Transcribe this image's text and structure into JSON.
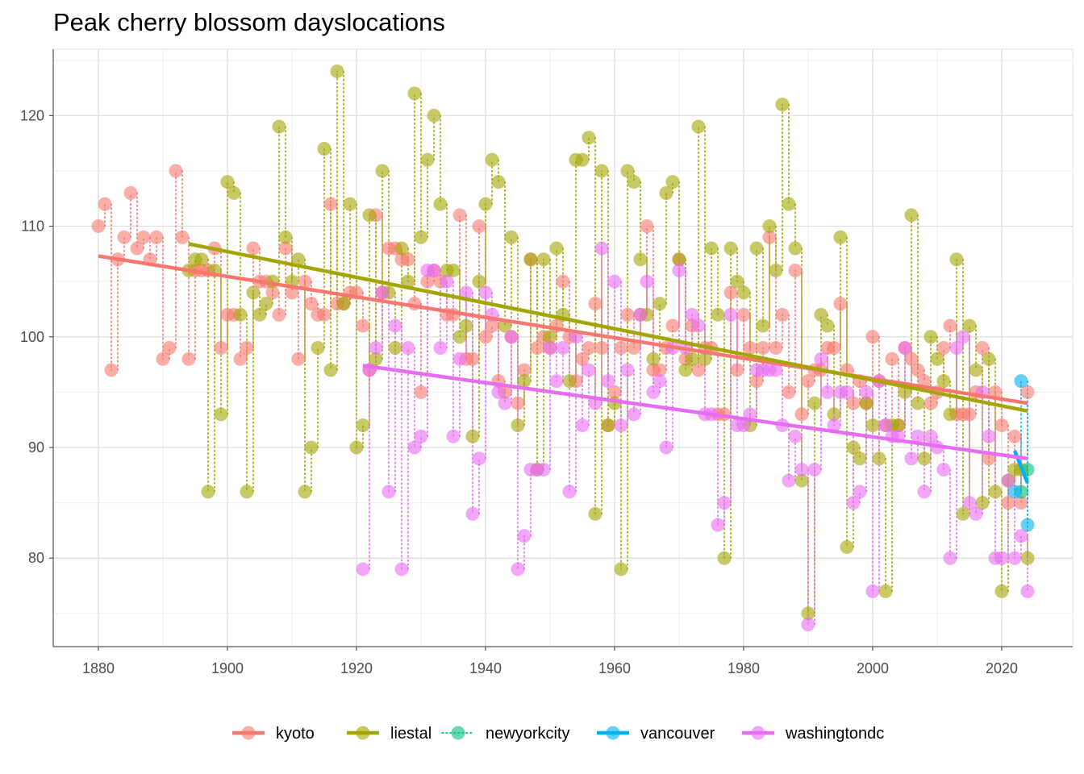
{
  "chart_data": {
    "type": "scatter",
    "title": "Peak cherry blossom dayslocations",
    "xlabel": "",
    "ylabel": "",
    "xlim": [
      1873,
      2031
    ],
    "ylim": [
      72,
      126
    ],
    "x_ticks": [
      1880,
      1900,
      1920,
      1940,
      1960,
      1980,
      2000,
      2020
    ],
    "y_ticks": [
      80,
      90,
      100,
      110,
      120
    ],
    "grid": true,
    "legend_position": "bottom",
    "colors": {
      "kyoto": "#F8766D",
      "liestal": "#A3A500",
      "newyorkcity": "#00BF7D",
      "vancouver": "#00B0F6",
      "washingtondc": "#E76BF3"
    },
    "legend": [
      "kyoto",
      "liestal",
      "newyorkcity",
      "vancouver",
      "washingtondc"
    ],
    "series": [
      {
        "name": "kyoto",
        "x": [
          1880,
          1881,
          1882,
          1883,
          1884,
          1885,
          1886,
          1887,
          1888,
          1889,
          1890,
          1891,
          1892,
          1893,
          1894,
          1895,
          1896,
          1897,
          1898,
          1899,
          1900,
          1901,
          1902,
          1903,
          1904,
          1905,
          1906,
          1907,
          1908,
          1909,
          1910,
          1911,
          1912,
          1913,
          1914,
          1915,
          1916,
          1917,
          1918,
          1919,
          1920,
          1921,
          1922,
          1923,
          1924,
          1925,
          1926,
          1927,
          1928,
          1929,
          1930,
          1931,
          1932,
          1933,
          1934,
          1935,
          1936,
          1937,
          1938,
          1939,
          1940,
          1941,
          1942,
          1943,
          1944,
          1945,
          1946,
          1947,
          1948,
          1949,
          1950,
          1951,
          1952,
          1953,
          1954,
          1955,
          1956,
          1957,
          1958,
          1959,
          1960,
          1961,
          1962,
          1963,
          1964,
          1965,
          1966,
          1967,
          1968,
          1969,
          1970,
          1971,
          1972,
          1973,
          1974,
          1975,
          1976,
          1977,
          1978,
          1979,
          1980,
          1981,
          1982,
          1983,
          1984,
          1985,
          1986,
          1987,
          1988,
          1989,
          1990,
          1991,
          1992,
          1993,
          1994,
          1995,
          1996,
          1997,
          1998,
          1999,
          2000,
          2001,
          2002,
          2003,
          2004,
          2005,
          2006,
          2007,
          2008,
          2009,
          2010,
          2011,
          2012,
          2013,
          2014,
          2015,
          2016,
          2017,
          2018,
          2019,
          2020,
          2021,
          2022,
          2023,
          2024
        ],
        "y": [
          110,
          112,
          97,
          107,
          109,
          113,
          108,
          109,
          107,
          109,
          98,
          99,
          115,
          109,
          98,
          106,
          106,
          106,
          108,
          99,
          102,
          102,
          98,
          99,
          108,
          105,
          105,
          104,
          102,
          108,
          104,
          98,
          105,
          103,
          102,
          102,
          112,
          103,
          103,
          104,
          104,
          101,
          97,
          111,
          104,
          108,
          108,
          107,
          107,
          103,
          95,
          105,
          106,
          105,
          102,
          102,
          111,
          98,
          98,
          110,
          100,
          101,
          96,
          95,
          100,
          94,
          97,
          107,
          99,
          100,
          99,
          101,
          105,
          100,
          96,
          98,
          99,
          103,
          99,
          92,
          95,
          99,
          102,
          99,
          102,
          110,
          97,
          97,
          99,
          101,
          107,
          98,
          101,
          97,
          99,
          99,
          93,
          93,
          104,
          97,
          102,
          99,
          96,
          99,
          109,
          99,
          102,
          95,
          106,
          93,
          96,
          97,
          97,
          99,
          99,
          103,
          97,
          94,
          96,
          94,
          100,
          96,
          92,
          98,
          92,
          99,
          98,
          97,
          96,
          94,
          95,
          99,
          101,
          93,
          93,
          93,
          95,
          99,
          89,
          95,
          92,
          85,
          91,
          85,
          95
        ]
      },
      {
        "name": "liestal",
        "x": [
          1894,
          1895,
          1896,
          1897,
          1898,
          1899,
          1900,
          1901,
          1902,
          1903,
          1904,
          1905,
          1906,
          1907,
          1908,
          1909,
          1910,
          1911,
          1912,
          1913,
          1914,
          1915,
          1916,
          1917,
          1918,
          1919,
          1920,
          1921,
          1922,
          1923,
          1924,
          1925,
          1926,
          1927,
          1928,
          1929,
          1930,
          1931,
          1932,
          1933,
          1934,
          1935,
          1936,
          1937,
          1938,
          1939,
          1940,
          1941,
          1942,
          1943,
          1944,
          1945,
          1946,
          1947,
          1948,
          1949,
          1950,
          1951,
          1952,
          1953,
          1954,
          1955,
          1956,
          1957,
          1958,
          1959,
          1960,
          1961,
          1962,
          1963,
          1964,
          1965,
          1966,
          1967,
          1968,
          1969,
          1970,
          1971,
          1972,
          1973,
          1974,
          1975,
          1976,
          1977,
          1978,
          1979,
          1980,
          1981,
          1982,
          1983,
          1984,
          1985,
          1986,
          1987,
          1988,
          1989,
          1990,
          1991,
          1992,
          1993,
          1994,
          1995,
          1996,
          1997,
          1998,
          1999,
          2000,
          2001,
          2002,
          2003,
          2004,
          2005,
          2006,
          2007,
          2008,
          2009,
          2010,
          2011,
          2012,
          2013,
          2014,
          2015,
          2016,
          2017,
          2018,
          2019,
          2020,
          2021,
          2022,
          2023,
          2024
        ],
        "y": [
          106,
          107,
          107,
          86,
          106,
          93,
          114,
          113,
          102,
          86,
          104,
          102,
          103,
          105,
          119,
          109,
          105,
          107,
          86,
          90,
          99,
          117,
          97,
          124,
          103,
          112,
          90,
          92,
          111,
          98,
          115,
          104,
          99,
          108,
          105,
          122,
          109,
          116,
          120,
          112,
          106,
          106,
          100,
          101,
          91,
          105,
          112,
          116,
          114,
          101,
          109,
          92,
          96,
          107,
          88,
          107,
          100,
          108,
          102,
          96,
          116,
          116,
          118,
          84,
          115,
          92,
          94,
          79,
          115,
          114,
          107,
          102,
          98,
          103,
          113,
          114,
          107,
          97,
          98,
          119,
          98,
          108,
          102,
          80,
          108,
          105,
          104,
          92,
          108,
          101,
          110,
          106,
          121,
          112,
          108,
          87,
          75,
          94,
          102,
          101,
          93,
          109,
          81,
          90,
          89,
          94,
          92,
          89,
          77,
          92,
          92,
          95,
          111,
          94,
          89,
          100,
          98,
          96,
          93,
          107,
          84,
          101,
          97,
          85,
          98,
          86,
          77,
          87,
          88,
          88,
          80
        ]
      },
      {
        "name": "newyorkcity",
        "x": [
          2023,
          2024
        ],
        "y": [
          86,
          88
        ]
      },
      {
        "name": "vancouver",
        "x": [
          2022,
          2023,
          2024
        ],
        "y": [
          86,
          96,
          83
        ]
      },
      {
        "name": "washingtondc",
        "x": [
          1921,
          1922,
          1923,
          1924,
          1925,
          1926,
          1927,
          1928,
          1929,
          1930,
          1931,
          1932,
          1933,
          1934,
          1935,
          1936,
          1937,
          1938,
          1939,
          1940,
          1941,
          1942,
          1943,
          1944,
          1945,
          1946,
          1947,
          1948,
          1949,
          1950,
          1951,
          1952,
          1953,
          1954,
          1955,
          1956,
          1957,
          1958,
          1959,
          1960,
          1961,
          1962,
          1963,
          1964,
          1965,
          1966,
          1967,
          1968,
          1969,
          1970,
          1971,
          1972,
          1973,
          1974,
          1975,
          1976,
          1977,
          1978,
          1979,
          1980,
          1981,
          1982,
          1983,
          1984,
          1985,
          1986,
          1987,
          1988,
          1989,
          1990,
          1991,
          1992,
          1993,
          1994,
          1995,
          1996,
          1997,
          1998,
          1999,
          2000,
          2001,
          2002,
          2003,
          2004,
          2005,
          2006,
          2007,
          2008,
          2009,
          2010,
          2011,
          2012,
          2013,
          2014,
          2015,
          2016,
          2017,
          2018,
          2019,
          2020,
          2021,
          2022,
          2023,
          2024
        ],
        "y": [
          79,
          97,
          99,
          104,
          86,
          101,
          79,
          99,
          90,
          91,
          106,
          106,
          99,
          105,
          91,
          98,
          104,
          84,
          89,
          104,
          102,
          95,
          94,
          100,
          79,
          82,
          88,
          88,
          88,
          99,
          96,
          99,
          86,
          100,
          92,
          97,
          94,
          108,
          96,
          105,
          92,
          97,
          93,
          102,
          105,
          95,
          96,
          90,
          99,
          106,
          99,
          102,
          101,
          93,
          93,
          83,
          85,
          102,
          92,
          92,
          93,
          97,
          97,
          97,
          97,
          92,
          87,
          91,
          88,
          74,
          88,
          98,
          95,
          92,
          95,
          95,
          85,
          86,
          95,
          77,
          96,
          92,
          91,
          91,
          99,
          89,
          91,
          86,
          91,
          90,
          88,
          80,
          99,
          100,
          85,
          84,
          95,
          91,
          80,
          80,
          87,
          80,
          82,
          77
        ]
      }
    ],
    "trend_lines": [
      {
        "name": "kyoto",
        "x": [
          1880,
          2024
        ],
        "y": [
          107.3,
          94.0
        ]
      },
      {
        "name": "liestal",
        "x": [
          1894,
          2024
        ],
        "y": [
          108.4,
          93.3
        ]
      },
      {
        "name": "vancouver",
        "x": [
          2022,
          2024
        ],
        "y": [
          89.7,
          86.8
        ]
      },
      {
        "name": "washingtondc",
        "x": [
          1921,
          2024
        ],
        "y": [
          97.4,
          89.0
        ]
      }
    ]
  }
}
